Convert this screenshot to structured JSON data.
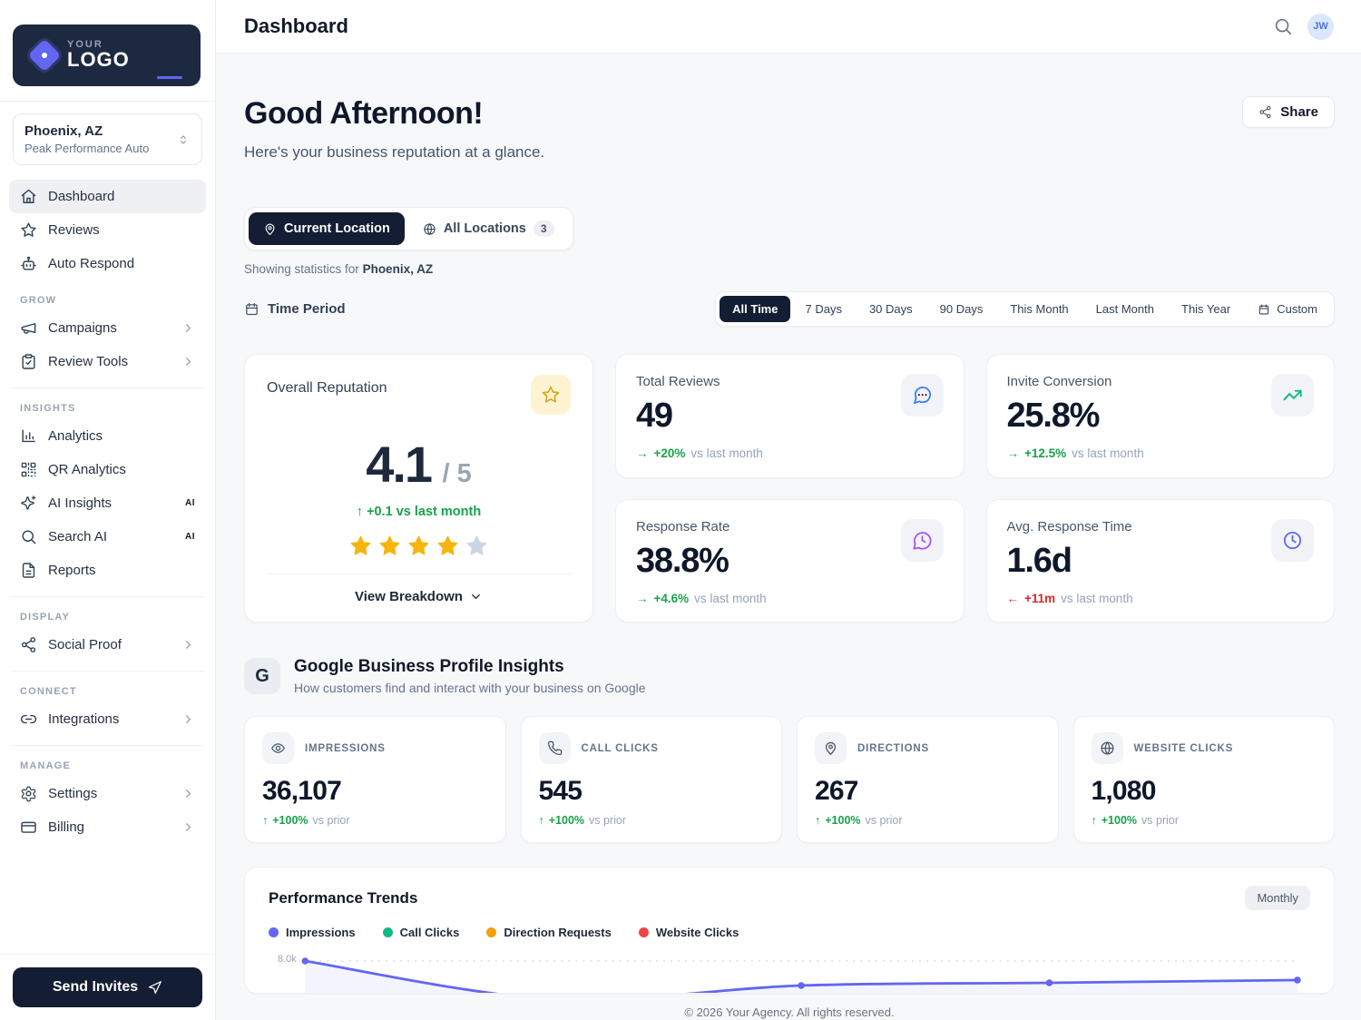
{
  "app": {
    "logo_small": "YOUR",
    "logo_large": "LOGO"
  },
  "header": {
    "title": "Dashboard",
    "avatar_initials": "JW"
  },
  "sidebar": {
    "location_selector": {
      "location": "Phoenix, AZ",
      "business": "Peak Performance Auto"
    },
    "sections": [
      {
        "label": "",
        "items": [
          {
            "label": "Dashboard",
            "icon": "home-icon",
            "active": true
          },
          {
            "label": "Reviews",
            "icon": "star-icon"
          },
          {
            "label": "Auto Respond",
            "icon": "bot-icon"
          }
        ]
      },
      {
        "label": "GROW",
        "items": [
          {
            "label": "Campaigns",
            "icon": "megaphone-icon",
            "chevron": true
          },
          {
            "label": "Review Tools",
            "icon": "clipboard-check-icon",
            "chevron": true
          }
        ]
      },
      {
        "label": "INSIGHTS",
        "items": [
          {
            "label": "Analytics",
            "icon": "bar-chart-icon"
          },
          {
            "label": "QR Analytics",
            "icon": "qr-code-icon"
          },
          {
            "label": "AI Insights",
            "icon": "sparkles-icon",
            "badge": "AI"
          },
          {
            "label": "Search AI",
            "icon": "search-icon",
            "badge": "AI"
          },
          {
            "label": "Reports",
            "icon": "file-text-icon"
          }
        ]
      },
      {
        "label": "DISPLAY",
        "items": [
          {
            "label": "Social Proof",
            "icon": "share-nodes-icon",
            "chevron": true
          }
        ]
      },
      {
        "label": "CONNECT",
        "items": [
          {
            "label": "Integrations",
            "icon": "link-icon",
            "chevron": true
          }
        ]
      },
      {
        "label": "MANAGE",
        "items": [
          {
            "label": "Settings",
            "icon": "gear-icon",
            "chevron": true
          },
          {
            "label": "Billing",
            "icon": "credit-card-icon",
            "chevron": true
          }
        ]
      }
    ],
    "send_invites_label": "Send Invites"
  },
  "greeting": {
    "title": "Good Afternoon!",
    "subtitle": "Here's your business reputation at a glance.",
    "share_label": "Share"
  },
  "location_tabs": {
    "current": "Current Location",
    "all": "All Locations",
    "all_count": "3",
    "showing_prefix": "Showing statistics for ",
    "showing_location": "Phoenix, AZ"
  },
  "time_period": {
    "label": "Time Period",
    "options": [
      "All Time",
      "7 Days",
      "30 Days",
      "90 Days",
      "This Month",
      "Last Month",
      "This Year"
    ],
    "custom_label": "Custom",
    "active": "All Time"
  },
  "reputation": {
    "title": "Overall Reputation",
    "score": "4.1",
    "out_of": "/ 5",
    "delta_arrow": "↑",
    "delta_text": "+0.1 vs last month",
    "stars_filled": 4,
    "stars_total": 5,
    "view_breakdown": "View Breakdown"
  },
  "stat_cards": [
    {
      "title": "Total Reviews",
      "value": "49",
      "arrow": "→",
      "delta": "+20%",
      "suffix": "vs last month",
      "icon": "message-bubble-icon",
      "trend": "up",
      "icon_color": "#3b82f6"
    },
    {
      "title": "Invite Conversion",
      "value": "25.8%",
      "arrow": "→",
      "delta": "+12.5%",
      "suffix": "vs last month",
      "icon": "trending-up-icon",
      "trend": "up",
      "icon_color": "#10b981"
    },
    {
      "title": "Response Rate",
      "value": "38.8%",
      "arrow": "→",
      "delta": "+4.6%",
      "suffix": "vs last month",
      "icon": "message-clock-icon",
      "trend": "up",
      "icon_color": "#a855f7"
    },
    {
      "title": "Avg. Response Time",
      "value": "1.6d",
      "arrow": "←",
      "delta": "+11m",
      "suffix": "vs last month",
      "icon": "clock-icon",
      "trend": "down",
      "icon_color": "#6366f1"
    }
  ],
  "gbp": {
    "badge": "G",
    "title": "Google Business Profile Insights",
    "subtitle": "How customers find and interact with your business on Google",
    "tiles": [
      {
        "label": "IMPRESSIONS",
        "value": "36,107",
        "arrow": "↑",
        "delta": "+100%",
        "suffix": "vs prior",
        "icon": "eye-icon"
      },
      {
        "label": "CALL CLICKS",
        "value": "545",
        "arrow": "↑",
        "delta": "+100%",
        "suffix": "vs prior",
        "icon": "phone-icon"
      },
      {
        "label": "DIRECTIONS",
        "value": "267",
        "arrow": "↑",
        "delta": "+100%",
        "suffix": "vs prior",
        "icon": "map-pin-icon"
      },
      {
        "label": "WEBSITE CLICKS",
        "value": "1,080",
        "arrow": "↑",
        "delta": "+100%",
        "suffix": "vs prior",
        "icon": "globe-icon"
      }
    ]
  },
  "trends": {
    "title": "Performance Trends",
    "period_badge": "Monthly",
    "legend": [
      {
        "label": "Impressions",
        "color": "#6366f1"
      },
      {
        "label": "Call Clicks",
        "color": "#10b981"
      },
      {
        "label": "Direction Requests",
        "color": "#f59e0b"
      },
      {
        "label": "Website Clicks",
        "color": "#ef4444"
      }
    ]
  },
  "chart_data": {
    "type": "line",
    "title": "Performance Trends",
    "granularity": "Monthly",
    "legend_position": "top-left",
    "grid": "dotted-horizontal",
    "x_axis_labels_visible": false,
    "x": [
      1,
      2,
      3,
      4,
      5
    ],
    "y_tick_labels": [
      "8.0k"
    ],
    "y_reference_value": 8000,
    "series": [
      {
        "name": "Impressions",
        "color": "#6366f1",
        "values_estimated": [
          8000,
          6950,
          7325,
          7400,
          7475
        ]
      },
      {
        "name": "Call Clicks",
        "color": "#10b981",
        "values_estimated": []
      },
      {
        "name": "Direction Requests",
        "color": "#f59e0b",
        "values_estimated": []
      },
      {
        "name": "Website Clicks",
        "color": "#ef4444",
        "values_estimated": []
      }
    ],
    "note": "chart bottom clipped at card edge; only top sliver of impressions line visible"
  },
  "footer": {
    "copyright": "© 2026 Your Agency. All rights reserved."
  },
  "colors": {
    "navy": "#131d33",
    "accent": "#6366f1",
    "green": "#16a34a",
    "red": "#dc2626",
    "background": "#f7f8fa",
    "card_border": "#edeff3",
    "star_gold": "#f5b50d"
  }
}
